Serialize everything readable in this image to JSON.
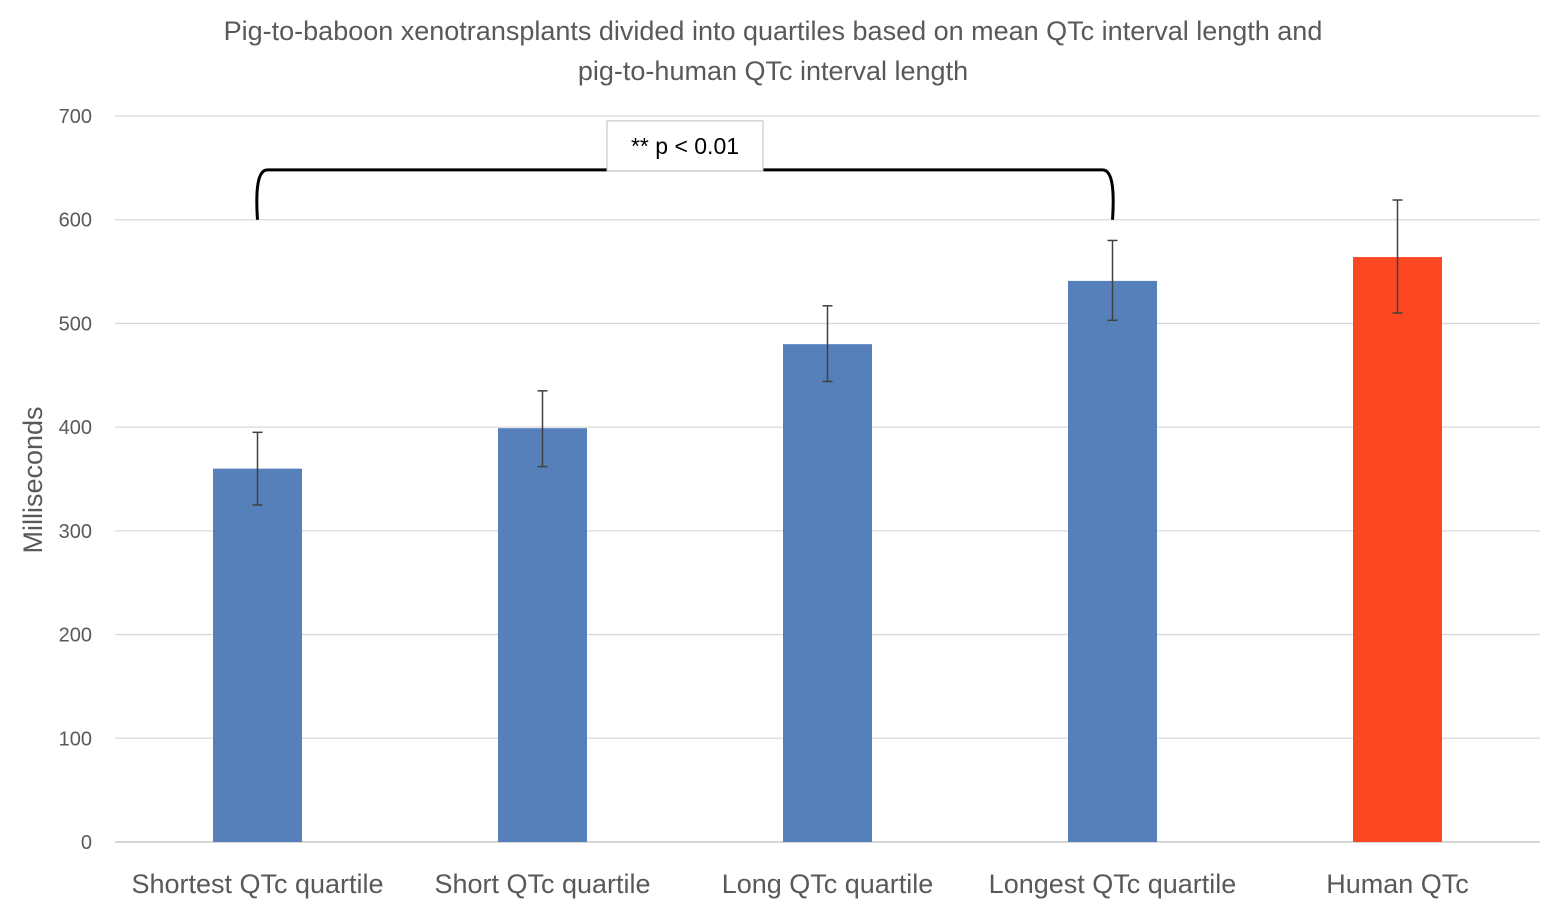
{
  "chart_data": {
    "type": "bar",
    "title": "Pig-to-baboon xenotransplants divided into quartiles based on mean QTc interval length and pig-to-human QTc interval length",
    "title_lines": [
      "Pig-to-baboon xenotransplants divided into quartiles based on mean QTc interval length and",
      "pig-to-human QTc interval length"
    ],
    "xlabel": "",
    "ylabel": "Milliseconds",
    "ylim": [
      0,
      700
    ],
    "yticks": [
      0,
      100,
      200,
      300,
      400,
      500,
      600,
      700
    ],
    "grid": true,
    "legend": "none",
    "categories": [
      "Shortest QTc quartile",
      "Short QTc quartile",
      "Long QTc quartile",
      "Longest QTc quartile",
      "Human QTc"
    ],
    "values": [
      360,
      399,
      480,
      541,
      564
    ],
    "error_low": [
      325,
      362,
      444,
      503,
      510
    ],
    "error_high": [
      395,
      435,
      517,
      580,
      619
    ],
    "colors": [
      "#5580b9",
      "#5580b9",
      "#5580b9",
      "#5580b9",
      "#fb4823"
    ],
    "annotation": {
      "text": "** p < 0.01",
      "from_category": 0,
      "to_category": 3,
      "bracket_value": 648
    }
  }
}
